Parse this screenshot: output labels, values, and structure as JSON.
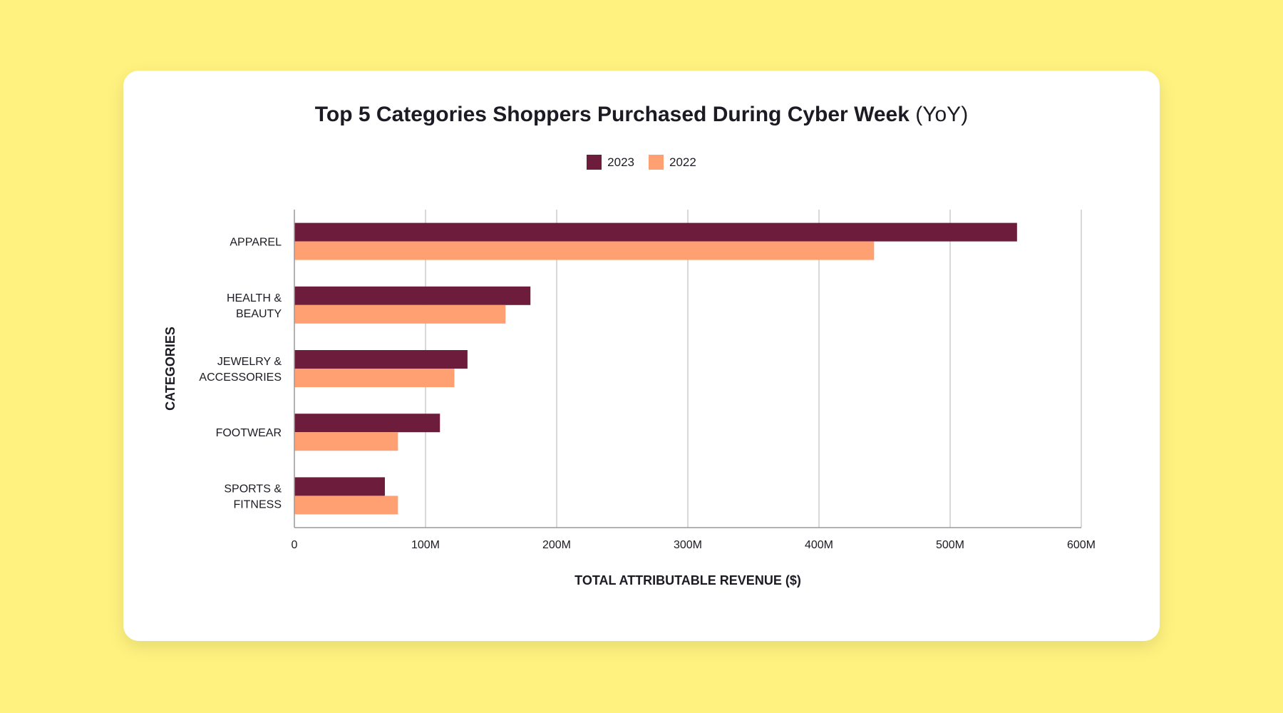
{
  "colors": {
    "background": "#fff27f",
    "series_2023": "#6d1c3b",
    "series_2022": "#ffa072",
    "grid": "#cccccc",
    "axis": "#999999",
    "text": "#1c1a22"
  },
  "chart_data": {
    "type": "bar",
    "orientation": "horizontal",
    "title": "Top 5 Categories Shoppers Purchased During Cyber Week",
    "title_suffix": "(YoY)",
    "categories": [
      [
        "APPAREL"
      ],
      [
        "HEALTH &",
        "BEAUTY"
      ],
      [
        "JEWELRY &",
        "ACCESSORIES"
      ],
      [
        "FOOTWEAR"
      ],
      [
        "SPORTS &",
        "FITNESS"
      ]
    ],
    "series": [
      {
        "name": "2023",
        "values": [
          551,
          180,
          132,
          111,
          69
        ]
      },
      {
        "name": "2022",
        "values": [
          442,
          161,
          122,
          79,
          79
        ]
      }
    ],
    "xlabel": "TOTAL ATTRIBUTABLE REVENUE ($)",
    "ylabel": "CATEGORIES",
    "xlim": [
      0,
      600
    ],
    "xticks": [
      0,
      100,
      200,
      300,
      400,
      500,
      600
    ],
    "xtick_labels": [
      "0",
      "100M",
      "200M",
      "300M",
      "400M",
      "500M",
      "600M"
    ],
    "grid": true,
    "legend_position": "top-center"
  }
}
